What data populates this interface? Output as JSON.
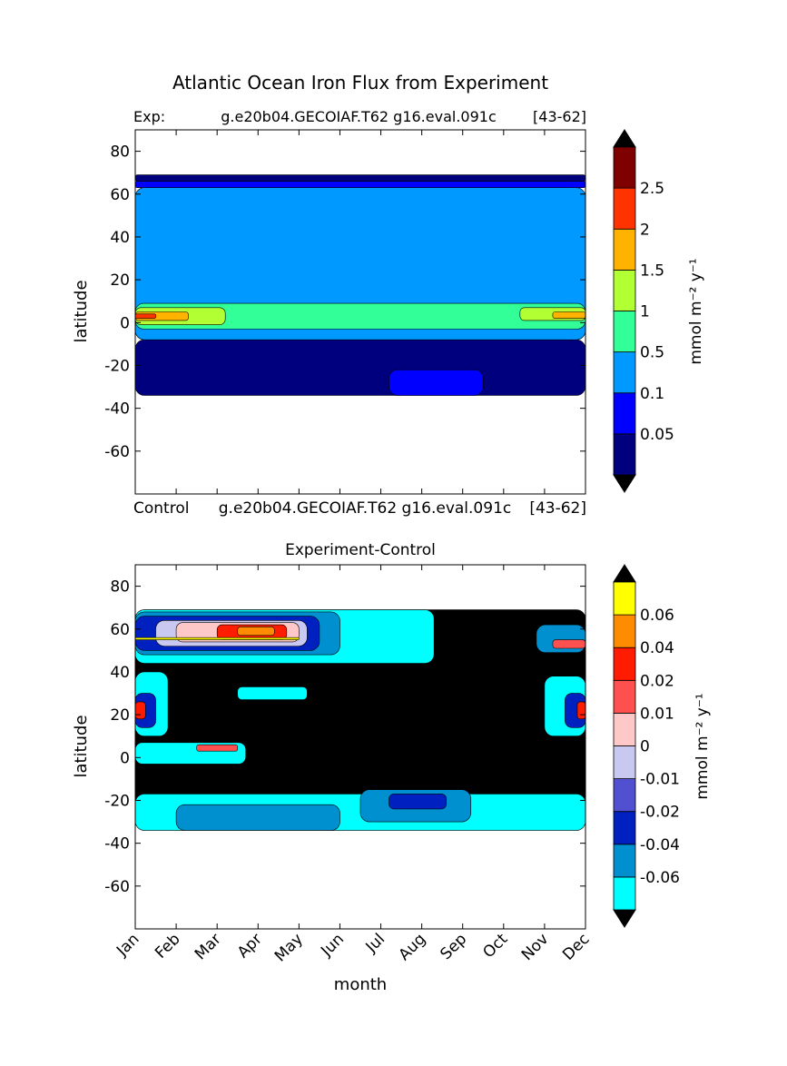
{
  "figure": {
    "title": "Atlantic Ocean Iron Flux from Experiment"
  },
  "panels": {
    "top": {
      "left_label": "Exp:",
      "center_label": "g.e20b04.GECOIAF.T62 g16.eval.091c",
      "right_label": "[43-62]",
      "ylabel": "latitude",
      "colorbar_label": "mmol m⁻² y⁻¹"
    },
    "bottom": {
      "title": "Experiment-Control",
      "left_label": "Control",
      "center_label": "g.e20b04.GECOIAF.T62 g16.eval.091c",
      "right_label": "[43-62]",
      "ylabel": "latitude",
      "xlabel": "month",
      "colorbar_label": "mmol m⁻² y⁻¹"
    }
  },
  "chart_data": [
    {
      "type": "heatmap",
      "title": "",
      "xlabel": "",
      "ylabel": "latitude",
      "x_categories": [
        "Jan",
        "Feb",
        "Mar",
        "Apr",
        "May",
        "Jun",
        "Jul",
        "Aug",
        "Sep",
        "Oct",
        "Nov",
        "Dec"
      ],
      "xlim": [
        1,
        12
      ],
      "ylim": [
        -80,
        90
      ],
      "yticks": [
        80,
        60,
        40,
        20,
        0,
        -20,
        -40,
        -60
      ],
      "data_lat_range": [
        -34,
        69
      ],
      "colorbar": {
        "levels": [
          "0.05",
          "0.1",
          "0.5",
          "1",
          "1.5",
          "2",
          "2.5"
        ],
        "colors": [
          "#00007f",
          "#0000ff",
          "#0099ff",
          "#33ff99",
          "#b2ff33",
          "#ffb300",
          "#ff3300",
          "#7f0000"
        ],
        "extend": "both",
        "extend_colors": [
          "#000000",
          "#000000"
        ],
        "label": "mmol m⁻² y⁻¹"
      },
      "regions": [
        {
          "desc": "southern band",
          "level_index": 0,
          "lat": [
            -34,
            -8
          ],
          "month": [
            1,
            12
          ]
        },
        {
          "desc": "south patch",
          "level_index": 1,
          "lat": [
            -34,
            -22
          ],
          "month": [
            7.2,
            9.5
          ]
        },
        {
          "desc": "midlat band",
          "level_index": 2,
          "lat": [
            -8,
            63
          ],
          "month": [
            1,
            12
          ]
        },
        {
          "desc": "north band",
          "level_index": 1,
          "lat": [
            63,
            66
          ],
          "month": [
            1,
            12
          ]
        },
        {
          "desc": "north edge",
          "level_index": 0,
          "lat": [
            66,
            69
          ],
          "month": [
            1,
            12
          ]
        },
        {
          "desc": "equatorial band",
          "level_index": 3,
          "lat": [
            -3,
            9
          ],
          "month": [
            1,
            12
          ]
        },
        {
          "desc": "Jan Feb maximum",
          "level_index": 4,
          "lat": [
            -1,
            7
          ],
          "month": [
            1,
            3.2
          ]
        },
        {
          "desc": "Jan Feb core",
          "level_index": 5,
          "lat": [
            1,
            5
          ],
          "month": [
            1,
            2.3
          ]
        },
        {
          "desc": "Jan core",
          "level_index": 6,
          "lat": [
            2,
            4
          ],
          "month": [
            1,
            1.5
          ]
        },
        {
          "desc": "Nov Dec maximum",
          "level_index": 4,
          "lat": [
            1,
            7
          ],
          "month": [
            10.4,
            12
          ]
        },
        {
          "desc": "Nov Dec core",
          "level_index": 5,
          "lat": [
            2,
            5
          ],
          "month": [
            11.2,
            12
          ]
        }
      ]
    },
    {
      "type": "heatmap",
      "title": "Experiment-Control",
      "xlabel": "month",
      "ylabel": "latitude",
      "x_categories": [
        "Jan",
        "Feb",
        "Mar",
        "Apr",
        "May",
        "Jun",
        "Jul",
        "Aug",
        "Sep",
        "Oct",
        "Nov",
        "Dec"
      ],
      "xlim": [
        1,
        12
      ],
      "ylim": [
        -80,
        90
      ],
      "yticks": [
        80,
        60,
        40,
        20,
        0,
        -20,
        -40,
        -60
      ],
      "data_lat_range": [
        -34,
        69
      ],
      "colorbar": {
        "levels": [
          "-0.06",
          "-0.04",
          "-0.02",
          "-0.01",
          "0",
          "0.01",
          "0.02",
          "0.04",
          "0.06"
        ],
        "colors": [
          "#00ffff",
          "#0090d0",
          "#0020c0",
          "#5050d0",
          "#c8c8f0",
          "#ffc8c8",
          "#ff5050",
          "#ff1c00",
          "#ff8c00",
          "#ffff00"
        ],
        "extend": "both",
        "extend_colors": [
          "#000000",
          "#000000"
        ],
        "label": "mmol m⁻² y⁻¹"
      },
      "regions": [
        {
          "desc": "background",
          "level_index": -1,
          "lat": [
            -34,
            69
          ],
          "month": [
            1,
            12
          ]
        },
        {
          "desc": "south cyan",
          "level_index": 0,
          "lat": [
            -34,
            -17
          ],
          "month": [
            1,
            12
          ]
        },
        {
          "desc": "south blue",
          "level_index": 1,
          "lat": [
            -34,
            -22
          ],
          "month": [
            2,
            6
          ]
        },
        {
          "desc": "south blue 2",
          "level_index": 1,
          "lat": [
            -30,
            -15
          ],
          "month": [
            6.5,
            9.2
          ]
        },
        {
          "desc": "south dark",
          "level_index": 2,
          "lat": [
            -24,
            -17
          ],
          "month": [
            7.2,
            8.6
          ]
        },
        {
          "desc": "north cyan",
          "level_index": 0,
          "lat": [
            44,
            69
          ],
          "month": [
            1,
            8.3
          ]
        },
        {
          "desc": "north blue",
          "level_index": 1,
          "lat": [
            48,
            68
          ],
          "month": [
            1,
            6
          ]
        },
        {
          "desc": "north dark",
          "level_index": 2,
          "lat": [
            50,
            66
          ],
          "month": [
            1,
            5.5
          ]
        },
        {
          "desc": "north lavender",
          "level_index": 4,
          "lat": [
            52,
            64
          ],
          "month": [
            1.5,
            5.2
          ]
        },
        {
          "desc": "north pink",
          "level_index": 5,
          "lat": [
            54,
            63
          ],
          "month": [
            2,
            5
          ]
        },
        {
          "desc": "north red",
          "level_index": 7,
          "lat": [
            55,
            62
          ],
          "month": [
            3,
            4.7
          ]
        },
        {
          "desc": "north orange",
          "level_index": 8,
          "lat": [
            57,
            61
          ],
          "month": [
            3.5,
            4.4
          ]
        },
        {
          "desc": "north stripe",
          "level_index": 9,
          "lat": [
            55,
            56
          ],
          "month": [
            1,
            5
          ]
        },
        {
          "desc": "dec north",
          "level_index": 1,
          "lat": [
            49,
            62
          ],
          "month": [
            10.8,
            12
          ]
        },
        {
          "desc": "dec north red",
          "level_index": 6,
          "lat": [
            51,
            55
          ],
          "month": [
            11.2,
            12
          ]
        },
        {
          "desc": "west tropics cyan",
          "level_index": 0,
          "lat": [
            10,
            40
          ],
          "month": [
            1,
            1.8
          ]
        },
        {
          "desc": "west tropics dark",
          "level_index": 2,
          "lat": [
            14,
            30
          ],
          "month": [
            1,
            1.5
          ]
        },
        {
          "desc": "west tropics red",
          "level_index": 7,
          "lat": [
            18,
            26
          ],
          "month": [
            1,
            1.25
          ]
        },
        {
          "desc": "east tropics cyan",
          "level_index": 0,
          "lat": [
            10,
            38
          ],
          "month": [
            11,
            12
          ]
        },
        {
          "desc": "east tropics dark",
          "level_index": 2,
          "lat": [
            14,
            30
          ],
          "month": [
            11.5,
            12
          ]
        },
        {
          "desc": "east tropics red",
          "level_index": 7,
          "lat": [
            18,
            26
          ],
          "month": [
            11.8,
            12
          ]
        },
        {
          "desc": "mid cyan patch",
          "level_index": 0,
          "lat": [
            27,
            33
          ],
          "month": [
            3.5,
            5.2
          ]
        },
        {
          "desc": "equatorial cyan",
          "level_index": 0,
          "lat": [
            -3,
            7
          ],
          "month": [
            1,
            3.7
          ]
        },
        {
          "desc": "equatorial red",
          "level_index": 6,
          "lat": [
            3,
            6
          ],
          "month": [
            2.5,
            3.5
          ]
        }
      ]
    }
  ]
}
